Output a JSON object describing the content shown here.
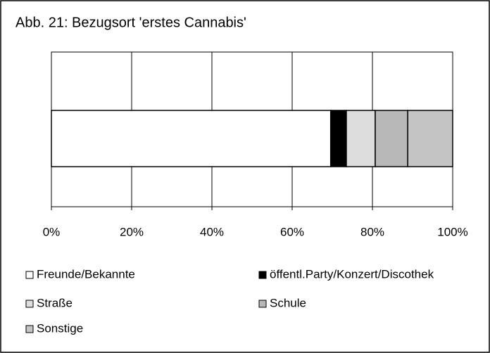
{
  "chart_data": {
    "type": "stacked-bar-horizontal",
    "title": "Abb. 21: Bezugsort 'erstes Cannabis'",
    "series": [
      {
        "name": "Freunde/Bekannte",
        "color": "#ffffff",
        "values": [
          69.6
        ]
      },
      {
        "name": "öffentl.Party/Konzert/Discothek",
        "color": "#000000",
        "values": [
          3.9
        ]
      },
      {
        "name": "Straße",
        "color": "#dddddd",
        "values": [
          7.2
        ]
      },
      {
        "name": "Schule",
        "color": "#b8b8b8",
        "values": [
          8.1
        ]
      },
      {
        "name": "Sonstige",
        "color": "#c4c4c4",
        "values": [
          11.2
        ]
      }
    ],
    "xlim": [
      0,
      100
    ],
    "xticks": [
      {
        "value": 0,
        "label": "0%"
      },
      {
        "value": 20,
        "label": "20%"
      },
      {
        "value": 40,
        "label": "40%"
      },
      {
        "value": 60,
        "label": "60%"
      },
      {
        "value": 80,
        "label": "80%"
      },
      {
        "value": 100,
        "label": "100%"
      }
    ],
    "grid": true,
    "legend": "bottom"
  }
}
